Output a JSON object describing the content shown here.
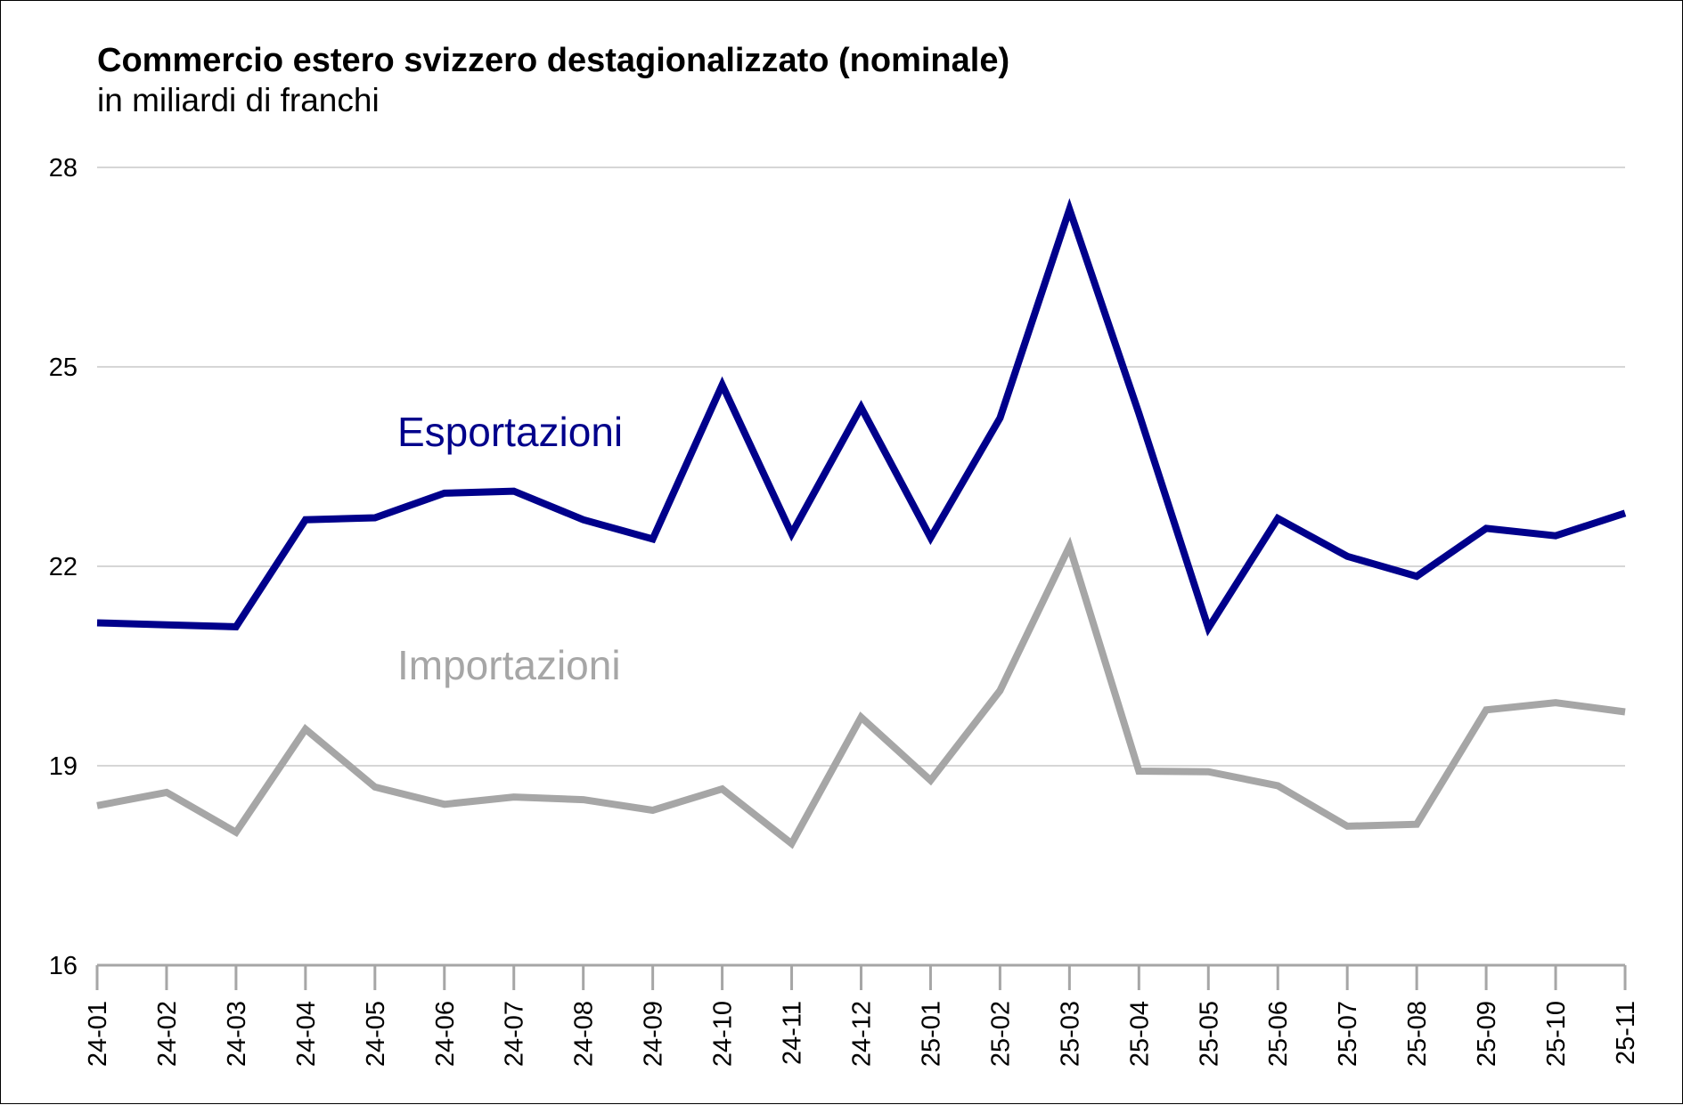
{
  "chart_data": {
    "type": "line",
    "title": "Commercio estero svizzero destagionalizzato (nominale)",
    "subtitle": "in miliardi di franchi",
    "xlabel": "",
    "ylabel": "",
    "categories": [
      "24-01",
      "24-02",
      "24-03",
      "24-04",
      "24-05",
      "24-06",
      "24-07",
      "24-08",
      "24-09",
      "24-10",
      "24-11",
      "24-12",
      "25-01",
      "25-02",
      "25-03",
      "25-04",
      "25-05",
      "25-06",
      "25-07",
      "25-08",
      "25-09",
      "25-10",
      "25-11"
    ],
    "ylim": [
      16,
      28
    ],
    "yticks": [
      16,
      19,
      22,
      25,
      28
    ],
    "grid": true,
    "legend": "inline labels",
    "series": [
      {
        "name": "Esportazioni",
        "color": "#00008b",
        "values": [
          21.15,
          21.12,
          21.09,
          22.7,
          22.73,
          23.1,
          23.13,
          22.7,
          22.41,
          24.73,
          22.49,
          24.39,
          22.43,
          24.23,
          27.37,
          24.3,
          21.07,
          22.72,
          22.15,
          21.85,
          22.57,
          22.46,
          22.8
        ]
      },
      {
        "name": "Importazioni",
        "color": "#a6a6a6",
        "values": [
          18.4,
          18.6,
          18.0,
          19.55,
          18.68,
          18.42,
          18.53,
          18.49,
          18.33,
          18.65,
          17.83,
          19.73,
          18.78,
          20.13,
          22.3,
          18.92,
          18.91,
          18.7,
          18.09,
          18.12,
          19.84,
          19.95,
          19.81
        ]
      }
    ]
  }
}
